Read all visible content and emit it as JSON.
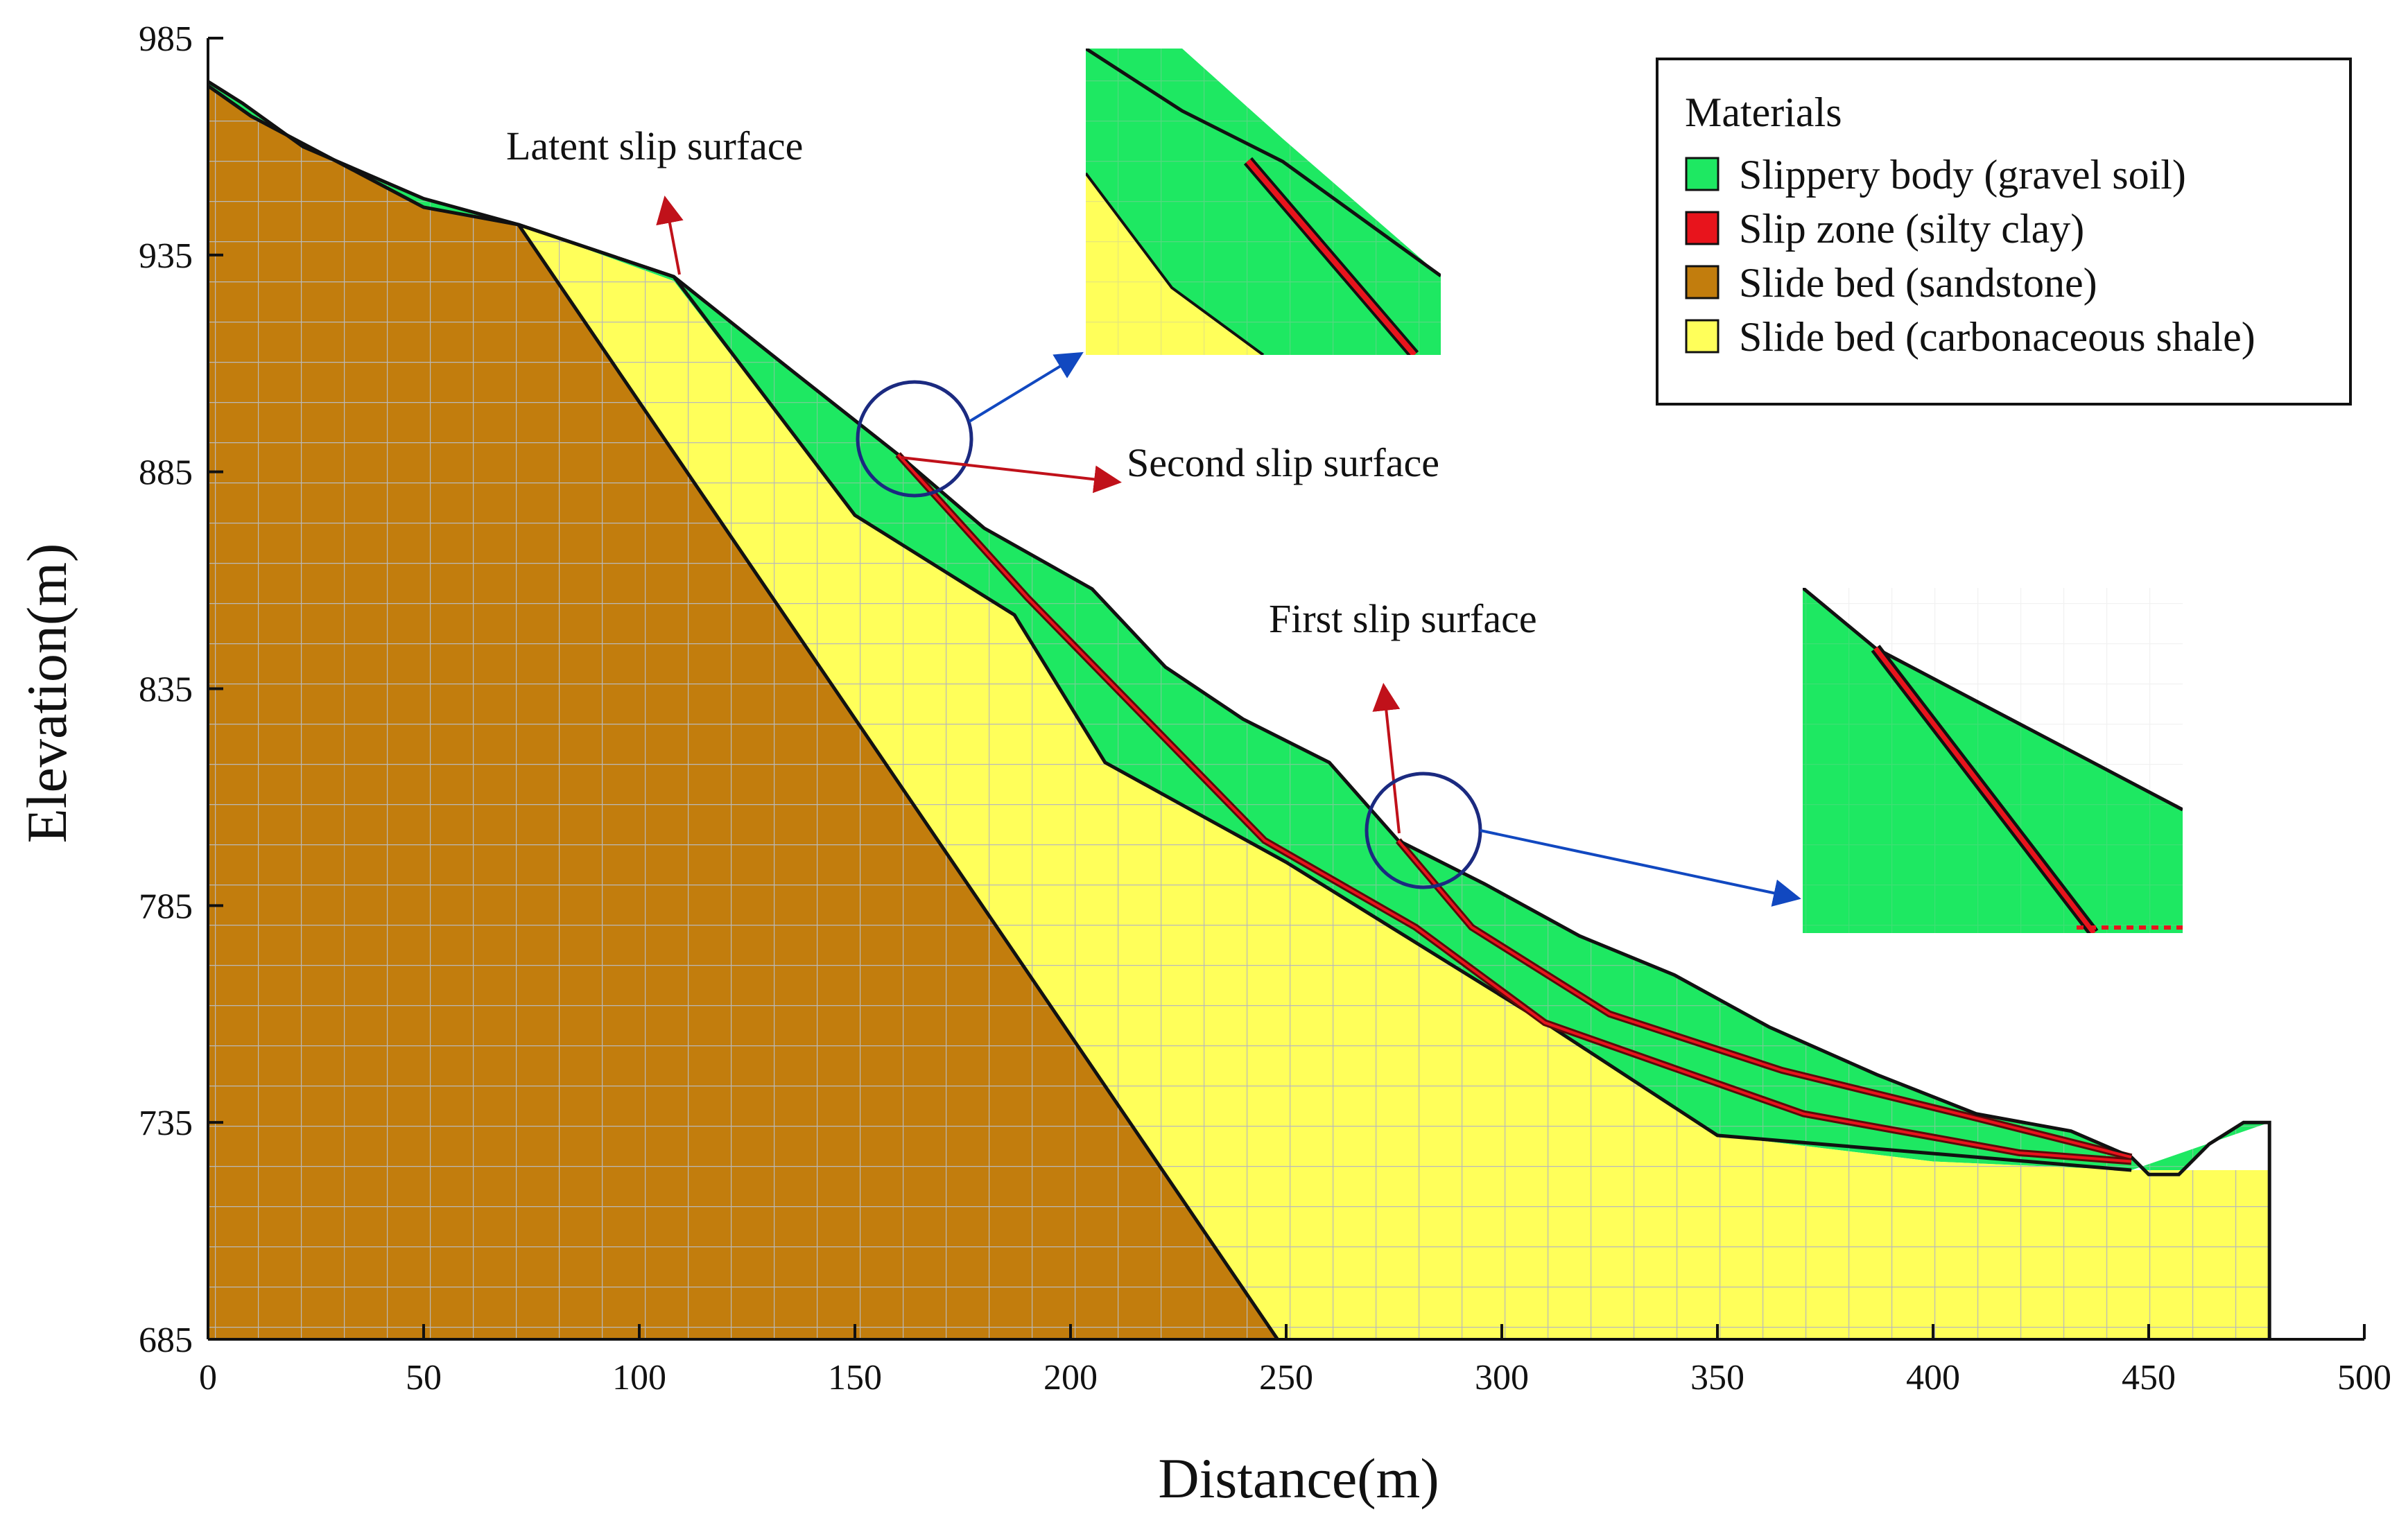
{
  "chart_data": {
    "type": "diagram",
    "title": "",
    "xlabel": "Distance(m)",
    "ylabel": "Elevation(m)",
    "xlim": [
      0,
      500
    ],
    "ylim": [
      685,
      985
    ],
    "x_ticks": [
      "0",
      "50",
      "100",
      "150",
      "200",
      "250",
      "300",
      "350",
      "400",
      "450",
      "500"
    ],
    "y_ticks": [
      "685",
      "735",
      "785",
      "835",
      "885",
      "935",
      "985"
    ],
    "legend": {
      "title": "Materials",
      "items": [
        {
          "label": "Slippery body (gravel soil)",
          "color": "#1ee862"
        },
        {
          "label": "Slip zone (silty clay)",
          "color": "#e8141c"
        },
        {
          "label": "Slide bed (sandstone)",
          "color": "#c27d0d"
        },
        {
          "label": "Slide bed (carbonaceous shale)",
          "color": "#ffff5a"
        }
      ]
    },
    "annotations": [
      {
        "text": "Latent slip surface",
        "points_to": [
          108,
          930
        ]
      },
      {
        "text": "Second slip surface",
        "points_to": [
          160,
          889
        ]
      },
      {
        "text": "First slip surface",
        "points_to": [
          276,
          800
        ]
      }
    ],
    "ground_surface": [
      [
        0,
        975
      ],
      [
        8,
        970
      ],
      [
        22,
        960
      ],
      [
        50,
        948
      ],
      [
        72,
        942
      ],
      [
        108,
        930
      ],
      [
        132,
        911
      ],
      [
        160,
        889
      ],
      [
        180,
        872
      ],
      [
        205,
        858
      ],
      [
        222,
        840
      ],
      [
        240,
        828
      ],
      [
        260,
        818
      ],
      [
        276,
        800
      ],
      [
        296,
        790
      ],
      [
        318,
        778
      ],
      [
        340,
        769
      ],
      [
        362,
        757
      ],
      [
        387,
        746
      ],
      [
        410,
        737
      ],
      [
        432,
        733
      ],
      [
        446,
        727
      ],
      [
        450,
        723
      ],
      [
        457,
        723
      ],
      [
        464,
        730
      ],
      [
        472,
        735
      ],
      [
        478,
        735
      ],
      [
        478,
        685
      ]
    ],
    "sandstone_boundary": [
      [
        0,
        974
      ],
      [
        10,
        967
      ],
      [
        50,
        946
      ],
      [
        72,
        942
      ],
      [
        248,
        685
      ]
    ],
    "shale_top": [
      [
        0,
        974
      ],
      [
        10,
        967
      ],
      [
        50,
        946
      ],
      [
        72,
        942
      ],
      [
        108,
        929
      ],
      [
        150,
        875
      ],
      [
        187,
        852
      ],
      [
        208,
        818
      ],
      [
        250,
        795
      ],
      [
        310,
        758
      ],
      [
        350,
        732
      ],
      [
        400,
        726
      ],
      [
        446,
        724
      ]
    ],
    "second_slip_surface": [
      [
        160,
        889
      ],
      [
        190,
        856
      ],
      [
        245,
        800
      ],
      [
        280,
        780
      ],
      [
        310,
        758
      ],
      [
        370,
        737
      ],
      [
        420,
        728
      ],
      [
        446,
        726
      ]
    ],
    "first_slip_surface": [
      [
        276,
        800
      ],
      [
        293,
        780
      ],
      [
        325,
        760
      ],
      [
        365,
        747
      ],
      [
        410,
        736
      ],
      [
        446,
        727
      ]
    ],
    "latent_slip_surface": [
      [
        72,
        942
      ],
      [
        108,
        930
      ],
      [
        150,
        875
      ],
      [
        187,
        852
      ],
      [
        208,
        818
      ],
      [
        250,
        795
      ],
      [
        310,
        758
      ],
      [
        350,
        732
      ],
      [
        446,
        724
      ]
    ]
  }
}
